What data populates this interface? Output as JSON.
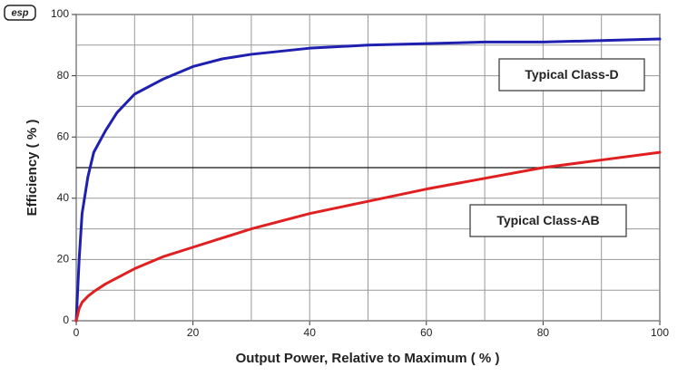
{
  "chart_data": {
    "type": "line",
    "logo": "esp",
    "x_label": "Output Power, Relative to Maximum ( % )",
    "y_label": "Efficiency ( % )",
    "x": [
      0,
      0.5,
      1,
      2,
      3,
      5,
      7,
      10,
      15,
      20,
      25,
      30,
      40,
      50,
      60,
      70,
      80,
      90,
      100
    ],
    "series": [
      {
        "name": "Typical Class-D",
        "color": "#2020b0",
        "values": [
          0,
          20,
          35,
          47,
          55,
          62,
          68,
          74,
          79,
          83,
          85.5,
          87,
          89,
          90,
          90.5,
          91,
          91,
          91.5,
          92
        ]
      },
      {
        "name": "Typical Class-AB",
        "color": "#e02020",
        "values": [
          0,
          4,
          6,
          8,
          9.5,
          12,
          14,
          17,
          21,
          24,
          27,
          30,
          35,
          39,
          43,
          46.5,
          50,
          52.5,
          55
        ]
      }
    ],
    "xlim": [
      0,
      100
    ],
    "ylim": [
      0,
      100
    ],
    "xticks": [
      0,
      20,
      40,
      60,
      80,
      100
    ],
    "yticks": [
      0,
      20,
      40,
      60,
      80,
      100
    ],
    "minor_xticks": [
      10,
      30,
      50,
      70,
      90
    ],
    "minor_yticks": [
      10,
      30,
      50,
      70,
      90
    ],
    "reference_line": 50,
    "grid": true
  }
}
